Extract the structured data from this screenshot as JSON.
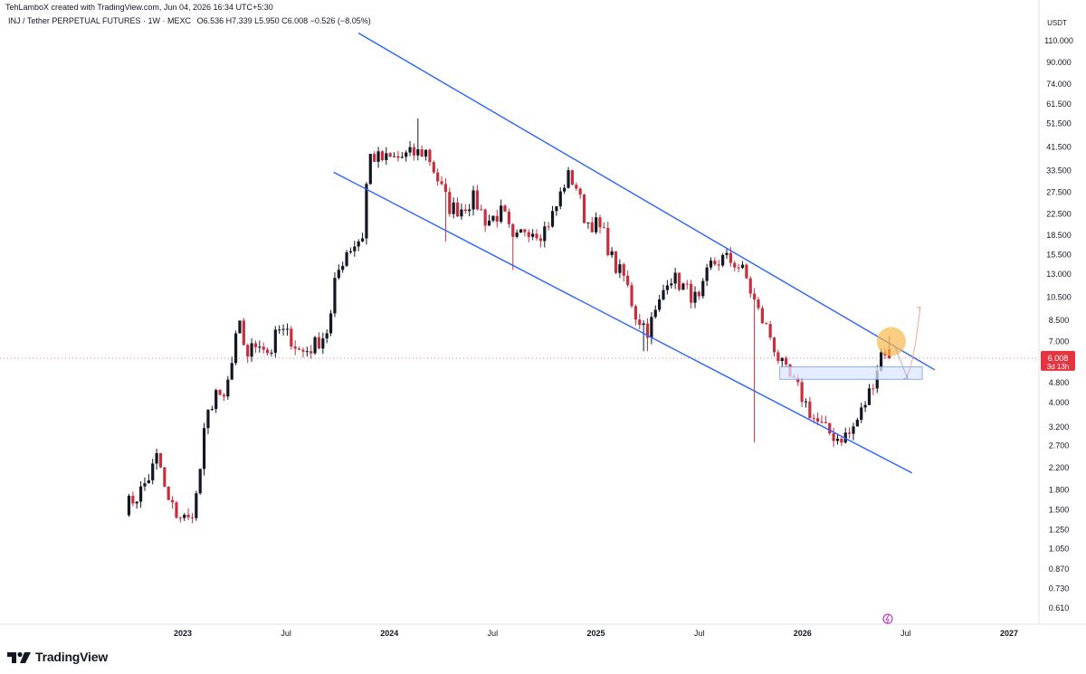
{
  "header": {
    "created_by": "TehLamboX created with TradingView.com, Jun 04, 2026 16:34 UTC+5:30",
    "symbol": "INJ / Tether PERPETUAL FUTURES · 1W · MEXC",
    "ohlc": "O6.536 H7.339 L5.950 C6.008 −0.526 (−8.05%)"
  },
  "footer": {
    "brand": "TradingView"
  },
  "colors": {
    "up": "#131722",
    "down": "#c62f3e",
    "channel": "#2962ff",
    "zone": "#dbe6ff",
    "highlight": "#f7b94d",
    "price_tag": "#e33440"
  },
  "chart_data": {
    "type": "candlestick",
    "title": "",
    "scale": "log",
    "currency_label": "USDT",
    "ylim": [
      0.55,
      130
    ],
    "y_ticks": [
      "110.000",
      "90.000",
      "74.000",
      "61.500",
      "51.500",
      "41.500",
      "33.500",
      "27.500",
      "22.500",
      "18.500",
      "15.500",
      "13.000",
      "10.500",
      "8.500",
      "7.000",
      "4.800",
      "4.000",
      "3.200",
      "2.700",
      "2.200",
      "1.800",
      "1.500",
      "1.250",
      "1.050",
      "0.870",
      "0.730",
      "0.610"
    ],
    "x_ticks": [
      {
        "label": "2023",
        "t": 2023.0
      },
      {
        "label": "Jul",
        "t": 2023.5
      },
      {
        "label": "2024",
        "t": 2024.0
      },
      {
        "label": "Jul",
        "t": 2024.5
      },
      {
        "label": "2025",
        "t": 2025.0
      },
      {
        "label": "Jul",
        "t": 2025.5
      },
      {
        "label": "2026",
        "t": 2026.0
      },
      {
        "label": "Jul",
        "t": 2026.5
      },
      {
        "label": "2027",
        "t": 2027.0
      }
    ],
    "price_tag": {
      "value": "6.008",
      "countdown": "3d 13h"
    },
    "anchors": [
      [
        2022.72,
        1.55
      ],
      [
        2022.78,
        1.7
      ],
      [
        2022.84,
        2.05
      ],
      [
        2022.88,
        2.5
      ],
      [
        2022.92,
        1.65
      ],
      [
        2022.97,
        1.45
      ],
      [
        2023.03,
        1.35
      ],
      [
        2023.07,
        1.75
      ],
      [
        2023.11,
        3.3
      ],
      [
        2023.16,
        4.5
      ],
      [
        2023.19,
        3.8
      ],
      [
        2023.24,
        5.8
      ],
      [
        2023.27,
        8.3
      ],
      [
        2023.31,
        6.2
      ],
      [
        2023.37,
        7.1
      ],
      [
        2023.42,
        6.2
      ],
      [
        2023.46,
        7.8
      ],
      [
        2023.52,
        7.3
      ],
      [
        2023.57,
        6.3
      ],
      [
        2023.62,
        6.6
      ],
      [
        2023.67,
        7.2
      ],
      [
        2023.71,
        8.0
      ],
      [
        2023.74,
        12.5
      ],
      [
        2023.79,
        16.0
      ],
      [
        2023.84,
        17.3
      ],
      [
        2023.87,
        18.5
      ],
      [
        2023.9,
        38.5
      ],
      [
        2023.97,
        37.0
      ],
      [
        2024.04,
        37.5
      ],
      [
        2024.11,
        39.0
      ],
      [
        2024.18,
        40.0
      ],
      [
        2024.24,
        30.0
      ],
      [
        2024.29,
        24.0
      ],
      [
        2024.34,
        23.5
      ],
      [
        2024.41,
        26.0
      ],
      [
        2024.47,
        21.0
      ],
      [
        2024.55,
        23.0
      ],
      [
        2024.6,
        17.0
      ],
      [
        2024.66,
        20.0
      ],
      [
        2024.74,
        19.0
      ],
      [
        2024.8,
        23.0
      ],
      [
        2024.86,
        32.0
      ],
      [
        2024.9,
        30.0
      ],
      [
        2024.95,
        21.0
      ],
      [
        2025.0,
        20.5
      ],
      [
        2025.04,
        18.5
      ],
      [
        2025.09,
        14.0
      ],
      [
        2025.14,
        12.5
      ],
      [
        2025.19,
        9.0
      ],
      [
        2025.25,
        7.8
      ],
      [
        2025.3,
        9.5
      ],
      [
        2025.35,
        13.0
      ],
      [
        2025.4,
        12.0
      ],
      [
        2025.45,
        11.0
      ],
      [
        2025.5,
        10.0
      ],
      [
        2025.55,
        14.0
      ],
      [
        2025.62,
        15.0
      ],
      [
        2025.68,
        14.3
      ],
      [
        2025.72,
        13.0
      ],
      [
        2025.75,
        11.0
      ],
      [
        2025.79,
        9.0
      ],
      [
        2025.84,
        7.5
      ],
      [
        2025.89,
        5.8
      ],
      [
        2025.93,
        5.1
      ],
      [
        2025.98,
        4.5
      ],
      [
        2026.05,
        3.5
      ],
      [
        2026.11,
        3.1
      ],
      [
        2026.17,
        2.9
      ],
      [
        2026.23,
        3.0
      ],
      [
        2026.28,
        3.6
      ],
      [
        2026.32,
        4.3
      ],
      [
        2026.36,
        5.5
      ],
      [
        2026.39,
        6.7
      ],
      [
        2026.42,
        6.008
      ]
    ],
    "channel": {
      "upper": [
        [
          2023.85,
          118.0
        ],
        [
          2026.64,
          5.4
        ]
      ],
      "lower": [
        [
          2023.73,
          33.0
        ],
        [
          2026.53,
          2.1
        ]
      ]
    },
    "zone": {
      "t0": 2025.89,
      "t1": 2026.58,
      "low": 4.95,
      "high": 5.55
    },
    "highlight": {
      "t": 2026.43,
      "price": 7.0
    },
    "projection": [
      [
        2026.5,
        5.0
      ],
      [
        2026.57,
        9.6
      ]
    ],
    "pullback_arrow": [
      [
        2026.45,
        6.6
      ],
      [
        2026.51,
        4.95
      ]
    ],
    "spikes": [
      {
        "t": 2025.77,
        "low": 2.78
      },
      {
        "t": 2024.28,
        "low": 17.5
      },
      {
        "t": 2024.6,
        "low": 13.5
      },
      {
        "t": 2025.24,
        "low": 6.4
      },
      {
        "t": 2024.14,
        "high": 54.0
      }
    ]
  }
}
